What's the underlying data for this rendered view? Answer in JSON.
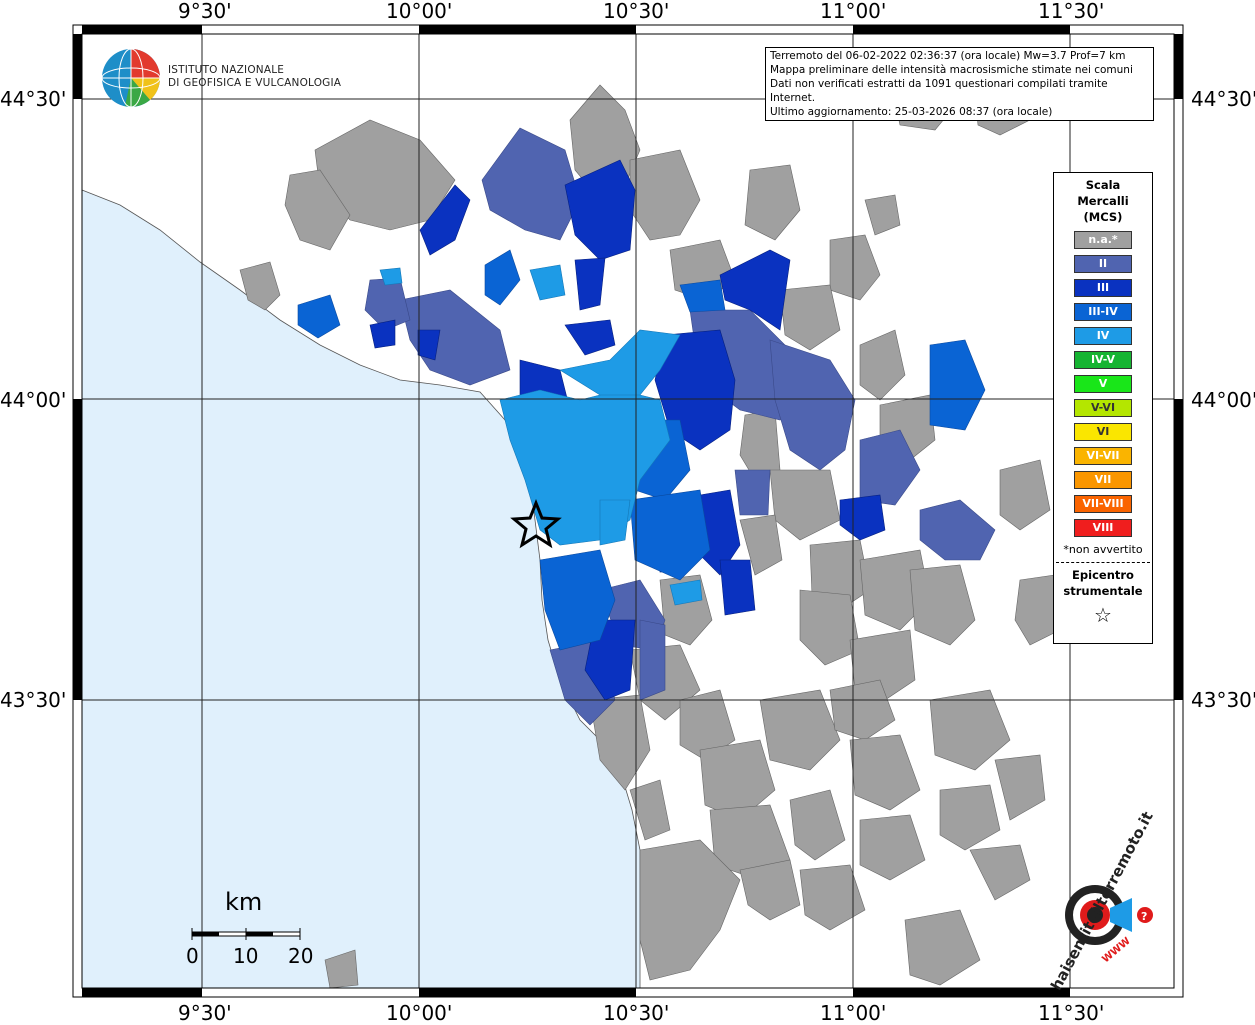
{
  "axes": {
    "lon_ticks": [
      "9°30'",
      "10°00'",
      "10°30'",
      "11°00'",
      "11°30'"
    ],
    "lat_ticks": [
      "44°30'",
      "44°00'",
      "43°30'"
    ]
  },
  "logo": {
    "line1": "ISTITUTO NAZIONALE",
    "line2": "DI GEOFISICA E VULCANOLOGIA"
  },
  "info": {
    "line1": "Terremoto del 06-02-2022 02:36:37 (ora locale) Mw=3.7 Prof=7 km",
    "line2": "Mappa preliminare delle intensità macrosismiche stimate nei comuni",
    "line3": "Dati non verificati estratti da 1091 questionari compilati tramite Internet.",
    "line4": "Ultimo aggiornamento: 25-03-2026 08:37 (ora locale)"
  },
  "legend": {
    "title1": "Scala",
    "title2": "Mercalli",
    "title3": "(MCS)",
    "items": [
      {
        "label": "n.a.*",
        "color": "#a0a0a0"
      },
      {
        "label": "II",
        "color": "#5064b0"
      },
      {
        "label": "III",
        "color": "#0a32c0"
      },
      {
        "label": "III-IV",
        "color": "#0a64d4"
      },
      {
        "label": "IV",
        "color": "#1e9be6"
      },
      {
        "label": "IV-V",
        "color": "#16b432"
      },
      {
        "label": "V",
        "color": "#19e619"
      },
      {
        "label": "V-VI",
        "color": "#b4e600"
      },
      {
        "label": "VI",
        "color": "#fae600"
      },
      {
        "label": "VI-VII",
        "color": "#fab400"
      },
      {
        "label": "VII",
        "color": "#fa9600"
      },
      {
        "label": "VII-VIII",
        "color": "#fa6400"
      },
      {
        "label": "VIII",
        "color": "#f01e1e"
      }
    ],
    "note": "*non avvertito",
    "epi1": "Epicentro",
    "epi2": "strumentale",
    "epi_symbol": "☆"
  },
  "scale_bar": {
    "unit": "km",
    "ticks": [
      "0",
      "10",
      "20"
    ]
  },
  "site": {
    "brand": "haisentitoilterremoto.it",
    "url": "WWW"
  },
  "colors": {
    "sea": "#e0f0fc",
    "land_na": "#a0a0a0",
    "frame": "#000000"
  }
}
